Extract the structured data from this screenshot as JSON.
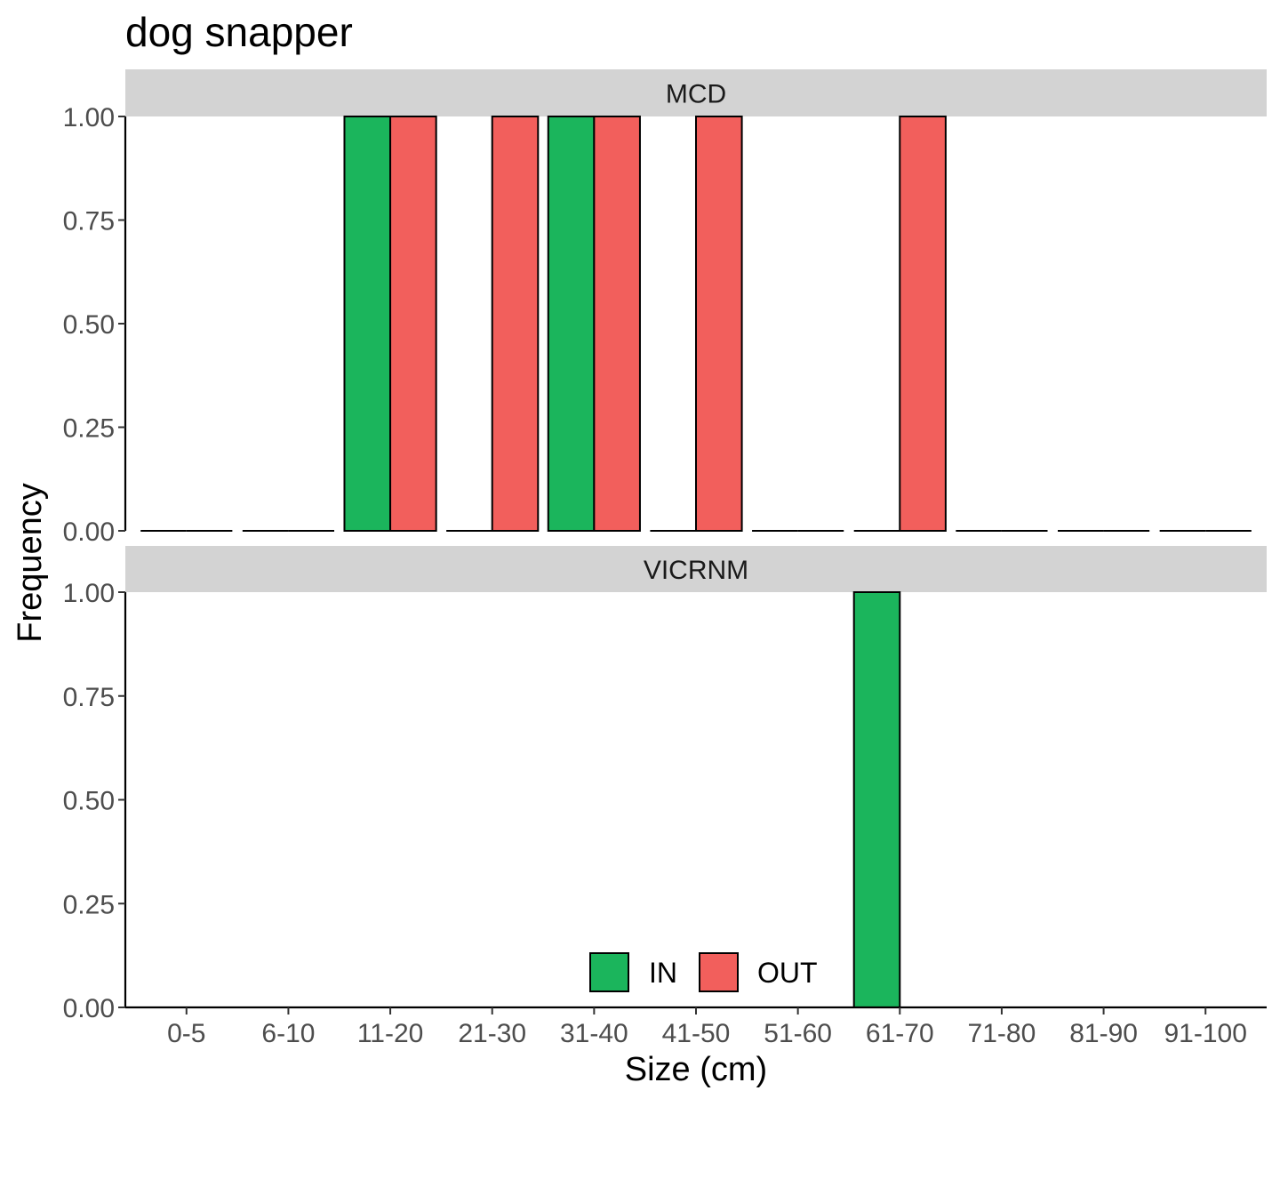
{
  "chart_data": {
    "type": "bar",
    "title": "dog snapper",
    "xlabel": "Size (cm)",
    "ylabel": "Frequency",
    "ylim": [
      0,
      1
    ],
    "yticks": [
      "0.00",
      "0.25",
      "0.50",
      "0.75",
      "1.00"
    ],
    "categories": [
      "0-5",
      "6-10",
      "11-20",
      "21-30",
      "31-40",
      "41-50",
      "51-60",
      "61-70",
      "71-80",
      "81-90",
      "91-100"
    ],
    "grid": false,
    "legend_position": "bottom",
    "legend": [
      {
        "name": "IN",
        "color": "#1bb55c"
      },
      {
        "name": "OUT",
        "color": "#f25f5c"
      }
    ],
    "facets": [
      {
        "label": "MCD",
        "series": [
          {
            "name": "IN",
            "values": [
              0,
              0,
              1,
              0,
              1,
              0,
              0,
              0,
              0,
              0,
              0
            ]
          },
          {
            "name": "OUT",
            "values": [
              0,
              0,
              1,
              1,
              1,
              1,
              0,
              1,
              0,
              0,
              0
            ]
          }
        ]
      },
      {
        "label": "VICRNM",
        "series": [
          {
            "name": "IN",
            "values": [
              0,
              0,
              0,
              0,
              0,
              0,
              0,
              1,
              0,
              0,
              0
            ]
          },
          {
            "name": "OUT",
            "values": [
              0,
              0,
              0,
              0,
              0,
              0,
              0,
              0,
              0,
              0,
              0
            ]
          }
        ]
      }
    ]
  },
  "colors": {
    "strip_background": "#d3d3d3",
    "axis_line": "#000000",
    "bar_outline": "#000000"
  }
}
